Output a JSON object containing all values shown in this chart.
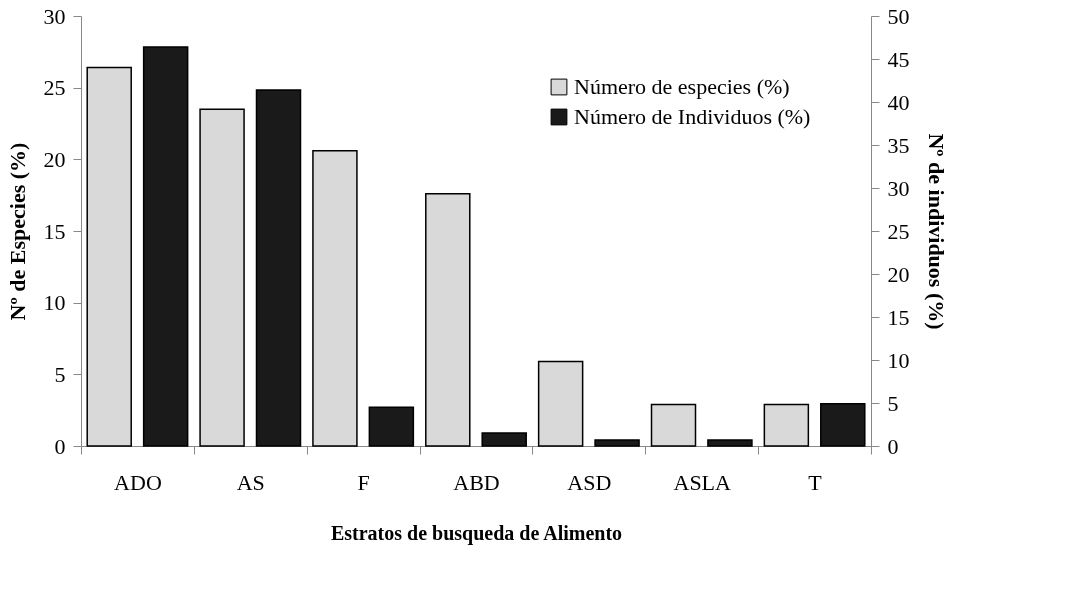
{
  "chart_data": {
    "type": "bar",
    "xlabel": "Estratos de busqueda de Alimento",
    "ylabel": "Nº de Especies (%)",
    "y2label": "Nº de individuos (%)",
    "categories": [
      "ADO",
      "AS",
      "F",
      "ABD",
      "ASD",
      "ASLA",
      "T"
    ],
    "series": [
      {
        "name": "Número de especies (%)",
        "color": "#d9d9d9",
        "values": [
          26.4,
          23.5,
          20.6,
          17.6,
          5.9,
          2.9,
          2.9
        ]
      },
      {
        "name": "Número de Individuos (%)",
        "color": "#1a1a1a",
        "axis": "y2",
        "values": [
          46.4,
          41.4,
          4.5,
          1.5,
          0.7,
          0.7,
          4.9
        ]
      }
    ],
    "ylim": [
      0,
      30
    ],
    "yticks": [
      0,
      5,
      10,
      15,
      20,
      25,
      30
    ],
    "y2lim": [
      0,
      50
    ],
    "y2ticks": [
      0,
      5,
      10,
      15,
      20,
      25,
      30,
      35,
      40,
      45,
      50
    ],
    "grid": false,
    "legend": "top right"
  }
}
